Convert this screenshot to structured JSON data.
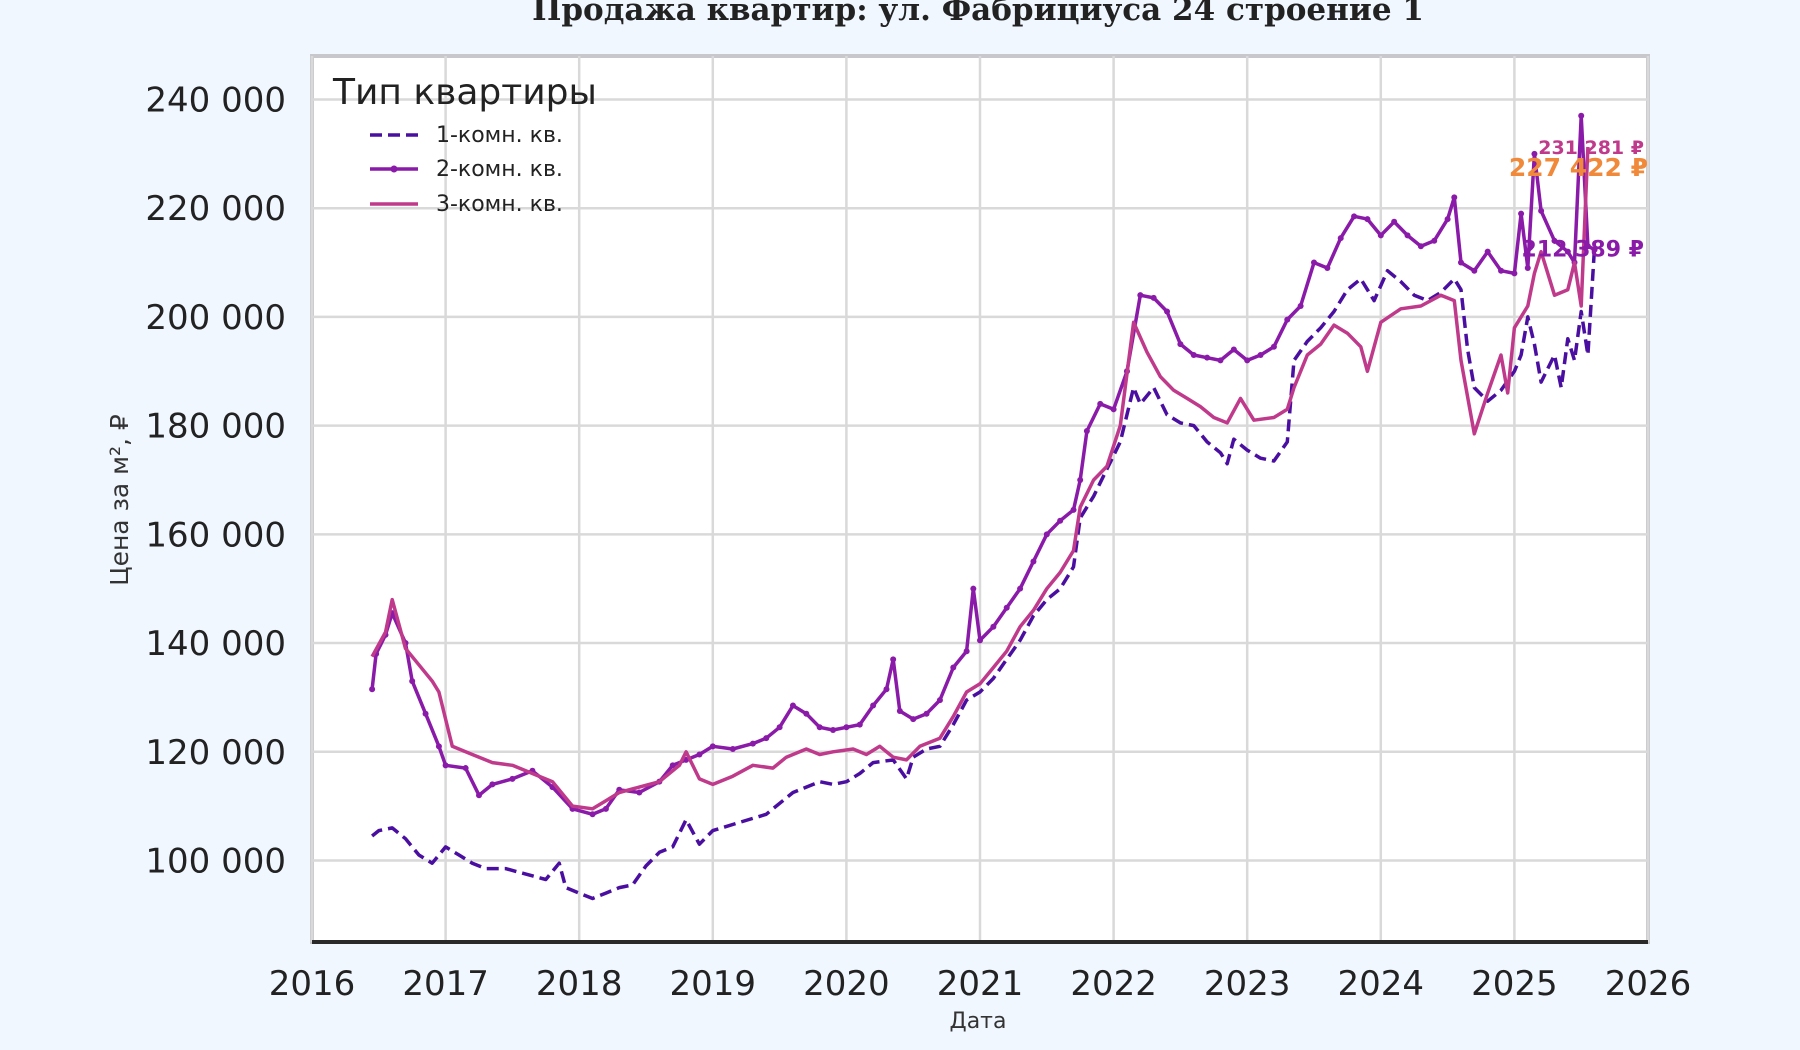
{
  "chart_data": {
    "type": "line",
    "title": "Продажа квартир: ул. Фабрициуса 24 строение 1",
    "xlabel": "Дата",
    "ylabel": "Цена за м², ₽",
    "xlim": [
      2016,
      2026
    ],
    "ylim": [
      85000,
      248000
    ],
    "x_ticks": [
      "2016",
      "2017",
      "2018",
      "2019",
      "2020",
      "2021",
      "2022",
      "2023",
      "2024",
      "2025",
      "2026"
    ],
    "y_ticks": [
      "100 000",
      "120 000",
      "140 000",
      "160 000",
      "180 000",
      "200 000",
      "220 000",
      "240 000"
    ],
    "grid": true,
    "legend": {
      "title": "Тип квартиры",
      "placement": "top-left"
    },
    "series": [
      {
        "name": "1-комн. кв.",
        "color": "#4a0fa0",
        "style": "dashed",
        "end_label": "",
        "points": [
          [
            2016.45,
            104500
          ],
          [
            2016.5,
            105500
          ],
          [
            2016.6,
            106000
          ],
          [
            2016.7,
            104000
          ],
          [
            2016.8,
            101000
          ],
          [
            2016.9,
            99500
          ],
          [
            2017.0,
            102500
          ],
          [
            2017.1,
            101000
          ],
          [
            2017.2,
            99500
          ],
          [
            2017.3,
            98500
          ],
          [
            2017.45,
            98500
          ],
          [
            2017.6,
            97500
          ],
          [
            2017.75,
            96500
          ],
          [
            2017.85,
            99500
          ],
          [
            2017.9,
            95000
          ],
          [
            2018.0,
            94000
          ],
          [
            2018.1,
            93000
          ],
          [
            2018.2,
            94000
          ],
          [
            2018.3,
            95000
          ],
          [
            2018.4,
            95500
          ],
          [
            2018.5,
            99000
          ],
          [
            2018.6,
            101500
          ],
          [
            2018.7,
            102500
          ],
          [
            2018.8,
            107500
          ],
          [
            2018.9,
            103000
          ],
          [
            2019.0,
            105500
          ],
          [
            2019.2,
            107000
          ],
          [
            2019.4,
            108500
          ],
          [
            2019.6,
            112500
          ],
          [
            2019.7,
            113500
          ],
          [
            2019.8,
            114500
          ],
          [
            2019.9,
            114000
          ],
          [
            2020.0,
            114500
          ],
          [
            2020.1,
            116000
          ],
          [
            2020.2,
            118000
          ],
          [
            2020.35,
            118500
          ],
          [
            2020.45,
            115000
          ],
          [
            2020.5,
            119000
          ],
          [
            2020.6,
            120500
          ],
          [
            2020.7,
            121000
          ],
          [
            2020.8,
            125000
          ],
          [
            2020.9,
            129500
          ],
          [
            2021.0,
            131000
          ],
          [
            2021.1,
            133500
          ],
          [
            2021.2,
            137000
          ],
          [
            2021.3,
            140500
          ],
          [
            2021.4,
            145000
          ],
          [
            2021.5,
            148000
          ],
          [
            2021.6,
            150000
          ],
          [
            2021.7,
            154000
          ],
          [
            2021.75,
            163000
          ],
          [
            2021.85,
            167000
          ],
          [
            2021.95,
            172000
          ],
          [
            2022.05,
            177000
          ],
          [
            2022.15,
            187000
          ],
          [
            2022.2,
            184000
          ],
          [
            2022.3,
            187000
          ],
          [
            2022.4,
            182000
          ],
          [
            2022.5,
            180500
          ],
          [
            2022.6,
            180000
          ],
          [
            2022.7,
            177000
          ],
          [
            2022.8,
            175000
          ],
          [
            2022.85,
            173000
          ],
          [
            2022.9,
            177500
          ],
          [
            2023.0,
            175500
          ],
          [
            2023.1,
            174000
          ],
          [
            2023.2,
            173500
          ],
          [
            2023.3,
            177000
          ],
          [
            2023.35,
            192000
          ],
          [
            2023.45,
            195500
          ],
          [
            2023.55,
            198000
          ],
          [
            2023.65,
            201000
          ],
          [
            2023.75,
            205000
          ],
          [
            2023.85,
            207000
          ],
          [
            2023.95,
            203000
          ],
          [
            2024.05,
            208500
          ],
          [
            2024.15,
            206500
          ],
          [
            2024.25,
            204000
          ],
          [
            2024.35,
            203000
          ],
          [
            2024.45,
            204500
          ],
          [
            2024.55,
            207000
          ],
          [
            2024.6,
            205000
          ],
          [
            2024.65,
            194000
          ],
          [
            2024.7,
            187000
          ],
          [
            2024.8,
            184500
          ],
          [
            2024.9,
            186500
          ],
          [
            2025.0,
            190000
          ],
          [
            2025.05,
            193000
          ],
          [
            2025.1,
            200000
          ],
          [
            2025.15,
            195000
          ],
          [
            2025.2,
            188000
          ],
          [
            2025.3,
            193000
          ],
          [
            2025.35,
            187000
          ],
          [
            2025.4,
            196000
          ],
          [
            2025.45,
            192000
          ],
          [
            2025.5,
            201000
          ],
          [
            2025.55,
            193000
          ],
          [
            2025.6,
            213000
          ]
        ]
      },
      {
        "name": "2-комн. кв.",
        "color": "#8a1aa8",
        "style": "solid-marker",
        "end_label": "212 389 ₽",
        "points": [
          [
            2016.45,
            131500
          ],
          [
            2016.48,
            138000
          ],
          [
            2016.55,
            141500
          ],
          [
            2016.6,
            145500
          ],
          [
            2016.7,
            140000
          ],
          [
            2016.75,
            133000
          ],
          [
            2016.85,
            127000
          ],
          [
            2016.95,
            121000
          ],
          [
            2017.0,
            117500
          ],
          [
            2017.15,
            117000
          ],
          [
            2017.25,
            112000
          ],
          [
            2017.35,
            114000
          ],
          [
            2017.5,
            115000
          ],
          [
            2017.65,
            116500
          ],
          [
            2017.8,
            113500
          ],
          [
            2017.95,
            109500
          ],
          [
            2018.1,
            108500
          ],
          [
            2018.2,
            109500
          ],
          [
            2018.3,
            113000
          ],
          [
            2018.45,
            112500
          ],
          [
            2018.6,
            114500
          ],
          [
            2018.7,
            117500
          ],
          [
            2018.8,
            118500
          ],
          [
            2018.9,
            119500
          ],
          [
            2019.0,
            121000
          ],
          [
            2019.15,
            120500
          ],
          [
            2019.3,
            121500
          ],
          [
            2019.4,
            122500
          ],
          [
            2019.5,
            124500
          ],
          [
            2019.6,
            128500
          ],
          [
            2019.7,
            127000
          ],
          [
            2019.8,
            124500
          ],
          [
            2019.9,
            124000
          ],
          [
            2020.0,
            124500
          ],
          [
            2020.1,
            125000
          ],
          [
            2020.2,
            128500
          ],
          [
            2020.3,
            131500
          ],
          [
            2020.35,
            137000
          ],
          [
            2020.4,
            127500
          ],
          [
            2020.5,
            126000
          ],
          [
            2020.6,
            127000
          ],
          [
            2020.7,
            129500
          ],
          [
            2020.8,
            135500
          ],
          [
            2020.9,
            138500
          ],
          [
            2020.95,
            150000
          ],
          [
            2021.0,
            140500
          ],
          [
            2021.1,
            143000
          ],
          [
            2021.2,
            146500
          ],
          [
            2021.3,
            150000
          ],
          [
            2021.4,
            155000
          ],
          [
            2021.5,
            160000
          ],
          [
            2021.6,
            162500
          ],
          [
            2021.7,
            164500
          ],
          [
            2021.75,
            170000
          ],
          [
            2021.8,
            179000
          ],
          [
            2021.9,
            184000
          ],
          [
            2022.0,
            183000
          ],
          [
            2022.1,
            190000
          ],
          [
            2022.2,
            204000
          ],
          [
            2022.3,
            203500
          ],
          [
            2022.4,
            201000
          ],
          [
            2022.5,
            195000
          ],
          [
            2022.6,
            193000
          ],
          [
            2022.7,
            192500
          ],
          [
            2022.8,
            192000
          ],
          [
            2022.9,
            194000
          ],
          [
            2023.0,
            192000
          ],
          [
            2023.1,
            193000
          ],
          [
            2023.2,
            194500
          ],
          [
            2023.3,
            199500
          ],
          [
            2023.4,
            202000
          ],
          [
            2023.5,
            210000
          ],
          [
            2023.6,
            209000
          ],
          [
            2023.7,
            214500
          ],
          [
            2023.8,
            218500
          ],
          [
            2023.9,
            218000
          ],
          [
            2024.0,
            215000
          ],
          [
            2024.1,
            217500
          ],
          [
            2024.2,
            215000
          ],
          [
            2024.3,
            213000
          ],
          [
            2024.4,
            214000
          ],
          [
            2024.5,
            218000
          ],
          [
            2024.55,
            222000
          ],
          [
            2024.6,
            210000
          ],
          [
            2024.7,
            208500
          ],
          [
            2024.8,
            212000
          ],
          [
            2024.9,
            208500
          ],
          [
            2025.0,
            208000
          ],
          [
            2025.05,
            219000
          ],
          [
            2025.1,
            209000
          ],
          [
            2025.15,
            230000
          ],
          [
            2025.2,
            219500
          ],
          [
            2025.3,
            214000
          ],
          [
            2025.4,
            212000
          ],
          [
            2025.45,
            210000
          ],
          [
            2025.5,
            237000
          ],
          [
            2025.55,
            213000
          ],
          [
            2025.6,
            212389
          ]
        ]
      },
      {
        "name": "3-комн. кв.",
        "color": "#c03a8c",
        "style": "solid",
        "end_label": "231 281 ₽",
        "points": [
          [
            2016.45,
            137500
          ],
          [
            2016.55,
            142000
          ],
          [
            2016.6,
            148000
          ],
          [
            2016.7,
            139000
          ],
          [
            2016.8,
            136000
          ],
          [
            2016.9,
            133000
          ],
          [
            2016.95,
            131000
          ],
          [
            2017.05,
            121000
          ],
          [
            2017.2,
            119500
          ],
          [
            2017.35,
            118000
          ],
          [
            2017.5,
            117500
          ],
          [
            2017.65,
            116000
          ],
          [
            2017.8,
            114500
          ],
          [
            2017.95,
            110000
          ],
          [
            2018.1,
            109500
          ],
          [
            2018.2,
            111000
          ],
          [
            2018.3,
            112500
          ],
          [
            2018.45,
            113500
          ],
          [
            2018.6,
            114500
          ],
          [
            2018.75,
            117500
          ],
          [
            2018.8,
            120000
          ],
          [
            2018.9,
            115000
          ],
          [
            2019.0,
            114000
          ],
          [
            2019.15,
            115500
          ],
          [
            2019.3,
            117500
          ],
          [
            2019.45,
            117000
          ],
          [
            2019.55,
            119000
          ],
          [
            2019.7,
            120500
          ],
          [
            2019.8,
            119500
          ],
          [
            2019.9,
            120000
          ],
          [
            2020.05,
            120500
          ],
          [
            2020.15,
            119500
          ],
          [
            2020.25,
            121000
          ],
          [
            2020.35,
            119000
          ],
          [
            2020.45,
            118500
          ],
          [
            2020.55,
            121000
          ],
          [
            2020.7,
            122500
          ],
          [
            2020.8,
            126500
          ],
          [
            2020.9,
            131000
          ],
          [
            2021.0,
            132500
          ],
          [
            2021.1,
            135500
          ],
          [
            2021.2,
            138500
          ],
          [
            2021.3,
            143000
          ],
          [
            2021.4,
            146000
          ],
          [
            2021.5,
            150000
          ],
          [
            2021.6,
            153000
          ],
          [
            2021.7,
            157000
          ],
          [
            2021.75,
            165000
          ],
          [
            2021.85,
            170000
          ],
          [
            2021.95,
            172500
          ],
          [
            2022.05,
            180000
          ],
          [
            2022.15,
            199000
          ],
          [
            2022.25,
            193500
          ],
          [
            2022.35,
            189000
          ],
          [
            2022.45,
            186500
          ],
          [
            2022.55,
            185000
          ],
          [
            2022.65,
            183500
          ],
          [
            2022.75,
            181500
          ],
          [
            2022.85,
            180500
          ],
          [
            2022.95,
            185000
          ],
          [
            2023.05,
            181000
          ],
          [
            2023.2,
            181500
          ],
          [
            2023.3,
            183000
          ],
          [
            2023.35,
            187000
          ],
          [
            2023.45,
            193000
          ],
          [
            2023.55,
            195000
          ],
          [
            2023.65,
            198500
          ],
          [
            2023.75,
            197000
          ],
          [
            2023.85,
            194500
          ],
          [
            2023.9,
            190000
          ],
          [
            2024.0,
            199000
          ],
          [
            2024.15,
            201500
          ],
          [
            2024.3,
            202000
          ],
          [
            2024.45,
            204000
          ],
          [
            2024.55,
            203000
          ],
          [
            2024.6,
            192000
          ],
          [
            2024.7,
            178500
          ],
          [
            2024.8,
            186000
          ],
          [
            2024.9,
            193000
          ],
          [
            2024.95,
            186000
          ],
          [
            2025.0,
            198000
          ],
          [
            2025.1,
            202000
          ],
          [
            2025.15,
            208000
          ],
          [
            2025.2,
            212000
          ],
          [
            2025.3,
            204000
          ],
          [
            2025.4,
            205000
          ],
          [
            2025.45,
            210000
          ],
          [
            2025.5,
            202000
          ],
          [
            2025.55,
            231281
          ]
        ]
      }
    ],
    "extra_labels": [
      {
        "text": "227 422 ₽",
        "color": "#f08a3a",
        "y": 227422
      }
    ]
  }
}
